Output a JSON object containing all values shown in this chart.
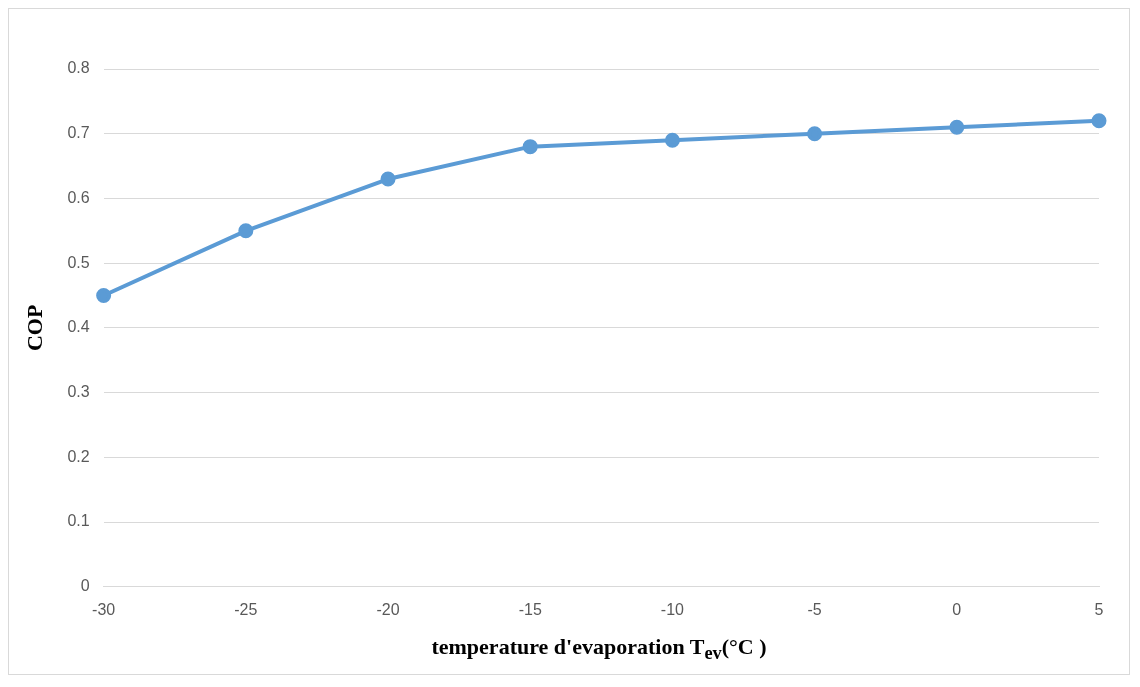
{
  "chart_data": {
    "type": "line",
    "xlabel": "temperature d'evaporation T$_{ev}$(°C )",
    "ylabel": "COP",
    "categories": [
      "-30",
      "-25",
      "-20",
      "-15",
      "-10",
      "-5",
      "0",
      "5"
    ],
    "series": [
      {
        "color": "#5b9bd5",
        "values": [
          0.45,
          0.55,
          0.63,
          0.68,
          0.69,
          0.7,
          0.71,
          0.72
        ]
      }
    ],
    "ylim": [
      0,
      0.8
    ],
    "yticks": [
      0,
      0.1,
      0.2,
      0.3,
      0.4,
      0.5,
      0.6,
      0.7,
      0.8
    ],
    "grid": "y",
    "legend": false,
    "marker": "circle",
    "line_style": "solid"
  }
}
